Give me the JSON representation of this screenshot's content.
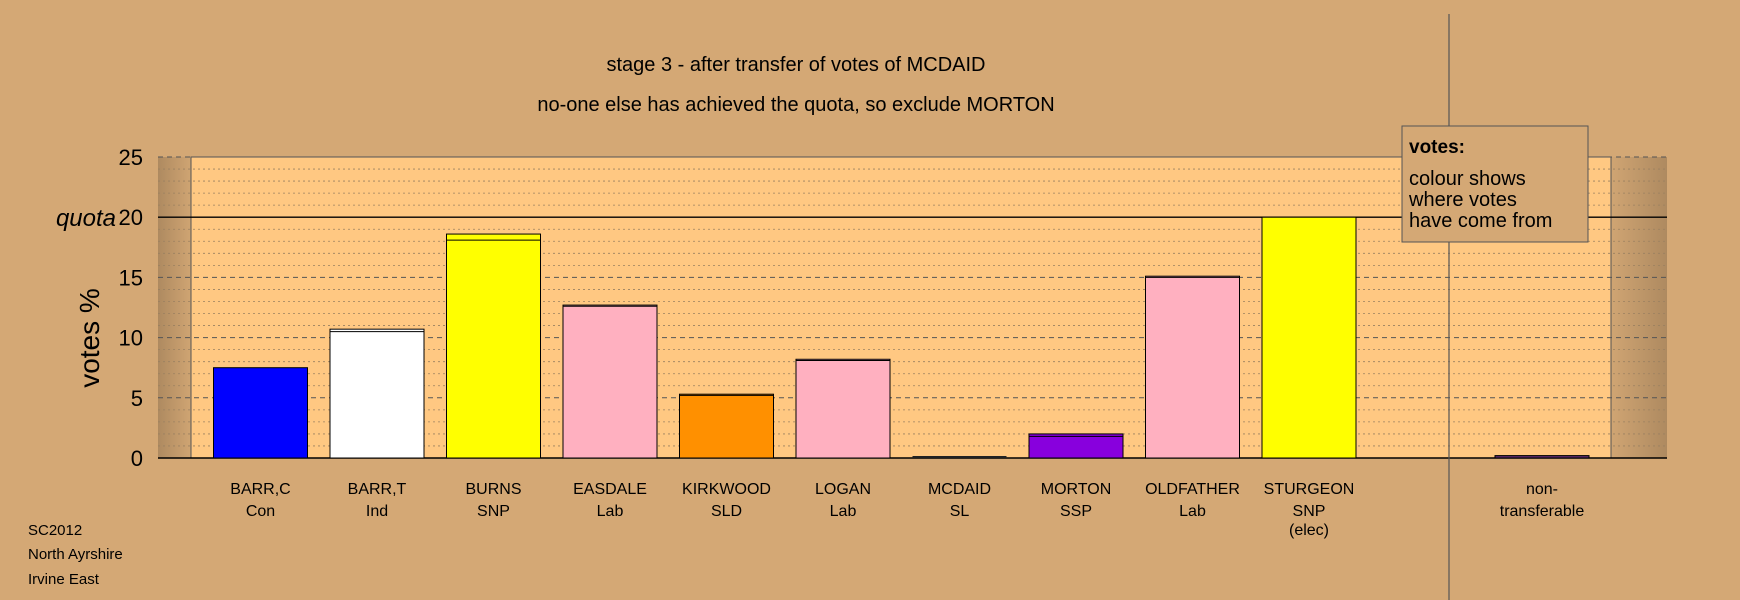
{
  "chart_data": {
    "type": "bar",
    "title": "stage 3 - after transfer of votes of MCDAID",
    "subtitle": "no-one else has achieved the quota, so exclude MORTON",
    "ylabel": "votes %",
    "quota_label": "quota",
    "quota": 20,
    "ylim": [
      0,
      25
    ],
    "yticks": [
      "0",
      "5",
      "10",
      "15",
      "20",
      "25"
    ],
    "candidates": [
      {
        "name": "BARR,C",
        "party": "Con",
        "value": 7.5,
        "transfer": 0.0,
        "color": "#0000ff"
      },
      {
        "name": "BARR,T",
        "party": "Ind",
        "value": 10.7,
        "transfer": 0.2,
        "color": "#ffffff"
      },
      {
        "name": "BURNS",
        "party": "SNP",
        "value": 18.6,
        "transfer": 0.5,
        "color": "#ffff00"
      },
      {
        "name": "EASDALE",
        "party": "Lab",
        "value": 12.7,
        "transfer": 0.1,
        "color": "#ffb0c0"
      },
      {
        "name": "KIRKWOOD",
        "party": "SLD",
        "value": 5.3,
        "transfer": 0.1,
        "color": "#ff9000"
      },
      {
        "name": "LOGAN",
        "party": "Lab",
        "value": 8.2,
        "transfer": 0.1,
        "color": "#ffb0c0"
      },
      {
        "name": "MCDAID",
        "party": "SL",
        "value": 0.0,
        "transfer": 0.0,
        "color": "#ff4040"
      },
      {
        "name": "MORTON",
        "party": "SSP",
        "value": 2.0,
        "transfer": 0.2,
        "color": "#8800dd"
      },
      {
        "name": "OLDFATHER",
        "party": "Lab",
        "value": 15.1,
        "transfer": 0.1,
        "color": "#ffb0c0"
      },
      {
        "name": "STURGEON",
        "party": "SNP",
        "extra": "(elec)",
        "value": 20.0,
        "transfer": 0.0,
        "color": "#ffff00"
      }
    ],
    "nontransferable": {
      "label_line1": "non-",
      "label_line2": "transferable",
      "value": 0.2,
      "color": "#5a2a6a"
    },
    "legend": {
      "title": "votes:",
      "lines": [
        "colour shows",
        "where votes",
        "have come from"
      ],
      "placement": "top-right"
    },
    "grid": true
  },
  "footer": {
    "lines": [
      "SC2012",
      "North Ayrshire",
      "Irvine East"
    ]
  }
}
